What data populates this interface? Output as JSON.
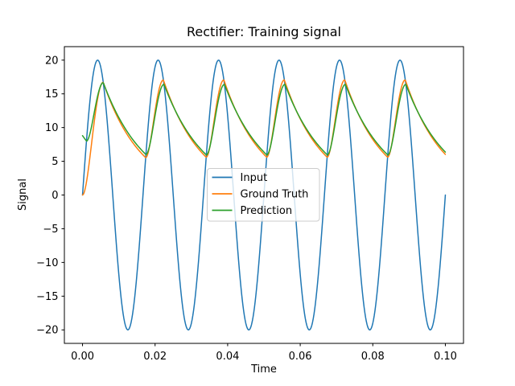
{
  "figure": {
    "background": "#ffffff"
  },
  "chart_data": {
    "type": "line",
    "title": "Rectifier: Training signal",
    "xlabel": "Time",
    "ylabel": "Signal",
    "xlim": [
      -0.005,
      0.105
    ],
    "ylim": [
      -22,
      22
    ],
    "grid": false,
    "x_ticks": {
      "values": [
        0.0,
        0.02,
        0.04,
        0.06,
        0.08,
        0.1
      ],
      "labels": [
        "0.00",
        "0.02",
        "0.04",
        "0.06",
        "0.08",
        "0.10"
      ]
    },
    "y_ticks": {
      "values": [
        -20,
        -15,
        -10,
        -5,
        0,
        5,
        10,
        15,
        20
      ],
      "labels": [
        "−20",
        "−15",
        "−10",
        "−5",
        "0",
        "5",
        "10",
        "15",
        "20"
      ]
    },
    "time_range": [
      0.0,
      0.1
    ],
    "sample_step_s": 0.0002,
    "legend": {
      "frame_alpha": 0.8,
      "edge_color": "#cccccc",
      "location_in_plot": "center-left"
    },
    "series": [
      {
        "name": "Input",
        "color": "#1f77b4",
        "line_width": 1.5,
        "model": {
          "type": "sine",
          "amplitude": 20,
          "frequency_hz": 60,
          "phase_rad": 0
        },
        "summary": {
          "min": -20,
          "max": 20,
          "cycles_shown": 6,
          "starts_at": [
            0.0,
            0.0
          ],
          "ends_at": [
            0.1,
            0.0
          ]
        }
      },
      {
        "name": "Ground Truth",
        "color": "#ff7f0e",
        "line_width": 1.5,
        "model": {
          "type": "rectified_rc",
          "source": "Input",
          "initial_value": 0.0,
          "charge_tau_s": 0.0019,
          "discharge_tau_s": 0.0106
        },
        "summary": {
          "peak_value": 15.0,
          "trough_value": 4.8,
          "first_peak_t": 0.0057,
          "peak_period_s": 0.0167,
          "starts_at": [
            0.0,
            0.0
          ],
          "ends_at": [
            0.1,
            5.0
          ]
        }
      },
      {
        "name": "Prediction",
        "color": "#2ca02c",
        "line_width": 1.5,
        "model": {
          "type": "rectified_rc",
          "source": "Input",
          "initial_value": 8.8,
          "charge_tau_s": 0.0023,
          "discharge_tau_s": 0.0115
        },
        "summary": {
          "peak_value": 15.3,
          "trough_value": 5.2,
          "first_peak_t": 0.0059,
          "peak_period_s": 0.0167,
          "starts_at": [
            0.0,
            8.8
          ],
          "ends_at": [
            0.1,
            5.3
          ]
        }
      }
    ]
  }
}
